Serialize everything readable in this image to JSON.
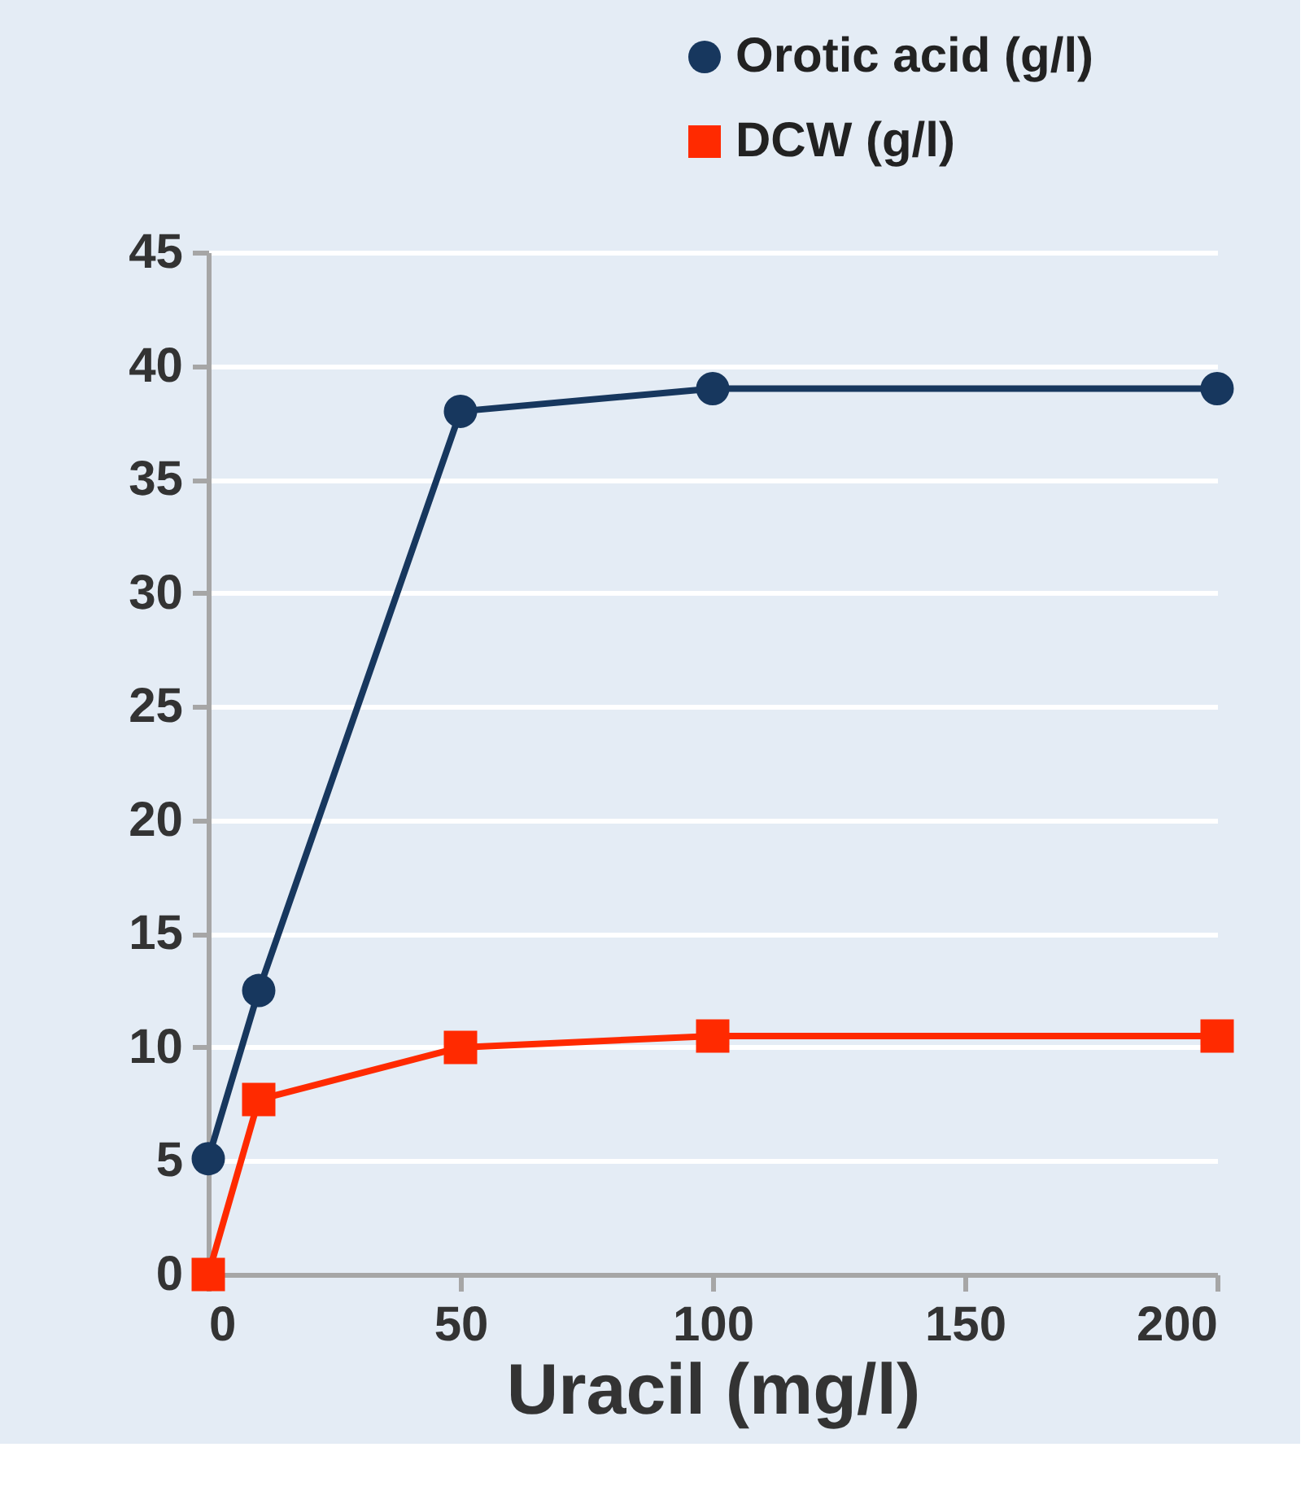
{
  "chart_data": {
    "type": "line",
    "xlabel": "Uracil (mg/l)",
    "x": [
      0,
      10,
      50,
      100,
      200
    ],
    "series": [
      {
        "name": "Orotic acid (g/l)",
        "color": "#17375e",
        "marker": "circle",
        "values": [
          5.1,
          12.5,
          38,
          39,
          39
        ]
      },
      {
        "name": "DCW (g/l)",
        "color": "#ff2a00",
        "marker": "square",
        "values": [
          0,
          7.7,
          10,
          10.5,
          10.5
        ]
      }
    ],
    "xlim": [
      0,
      200
    ],
    "xticks": [
      0,
      50,
      100,
      150,
      200
    ],
    "ylim": [
      0,
      45
    ],
    "yticks": [
      0,
      5,
      10,
      15,
      20,
      25,
      30,
      35,
      40,
      45
    ],
    "grid": "y",
    "legend": "top right",
    "line_style": "solid"
  }
}
